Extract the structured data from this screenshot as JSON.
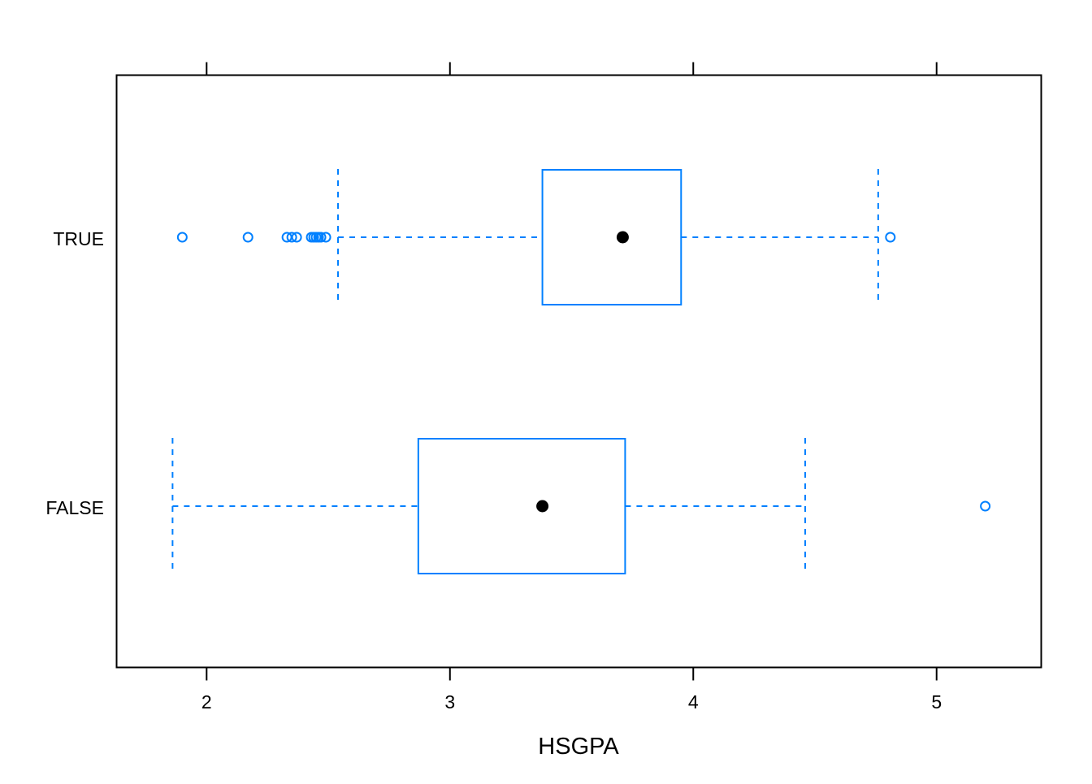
{
  "chart_data": {
    "type": "boxplot",
    "orientation": "horizontal",
    "title": "",
    "xlabel": "HSGPA",
    "ylabel": "",
    "xlim": [
      1.63,
      5.43
    ],
    "x_ticks": [
      2,
      3,
      4,
      5
    ],
    "x_tick_labels": [
      "2",
      "3",
      "4",
      "5"
    ],
    "ticks_on_top": true,
    "grid": false,
    "categories": [
      "TRUE",
      "FALSE"
    ],
    "box_color": "#0080FF",
    "median_color": "#000000",
    "series": [
      {
        "category": "TRUE",
        "whisker_low": 2.54,
        "q1": 3.38,
        "median": 3.71,
        "q3": 3.95,
        "whisker_high": 4.76,
        "outliers": [
          1.9,
          2.17,
          2.33,
          2.35,
          2.37,
          2.43,
          2.44,
          2.45,
          2.46,
          2.47,
          2.49,
          4.81
        ]
      },
      {
        "category": "FALSE",
        "whisker_low": 1.86,
        "q1": 2.87,
        "median": 3.38,
        "q3": 3.72,
        "whisker_high": 4.46,
        "outliers": [
          5.2
        ]
      }
    ]
  }
}
